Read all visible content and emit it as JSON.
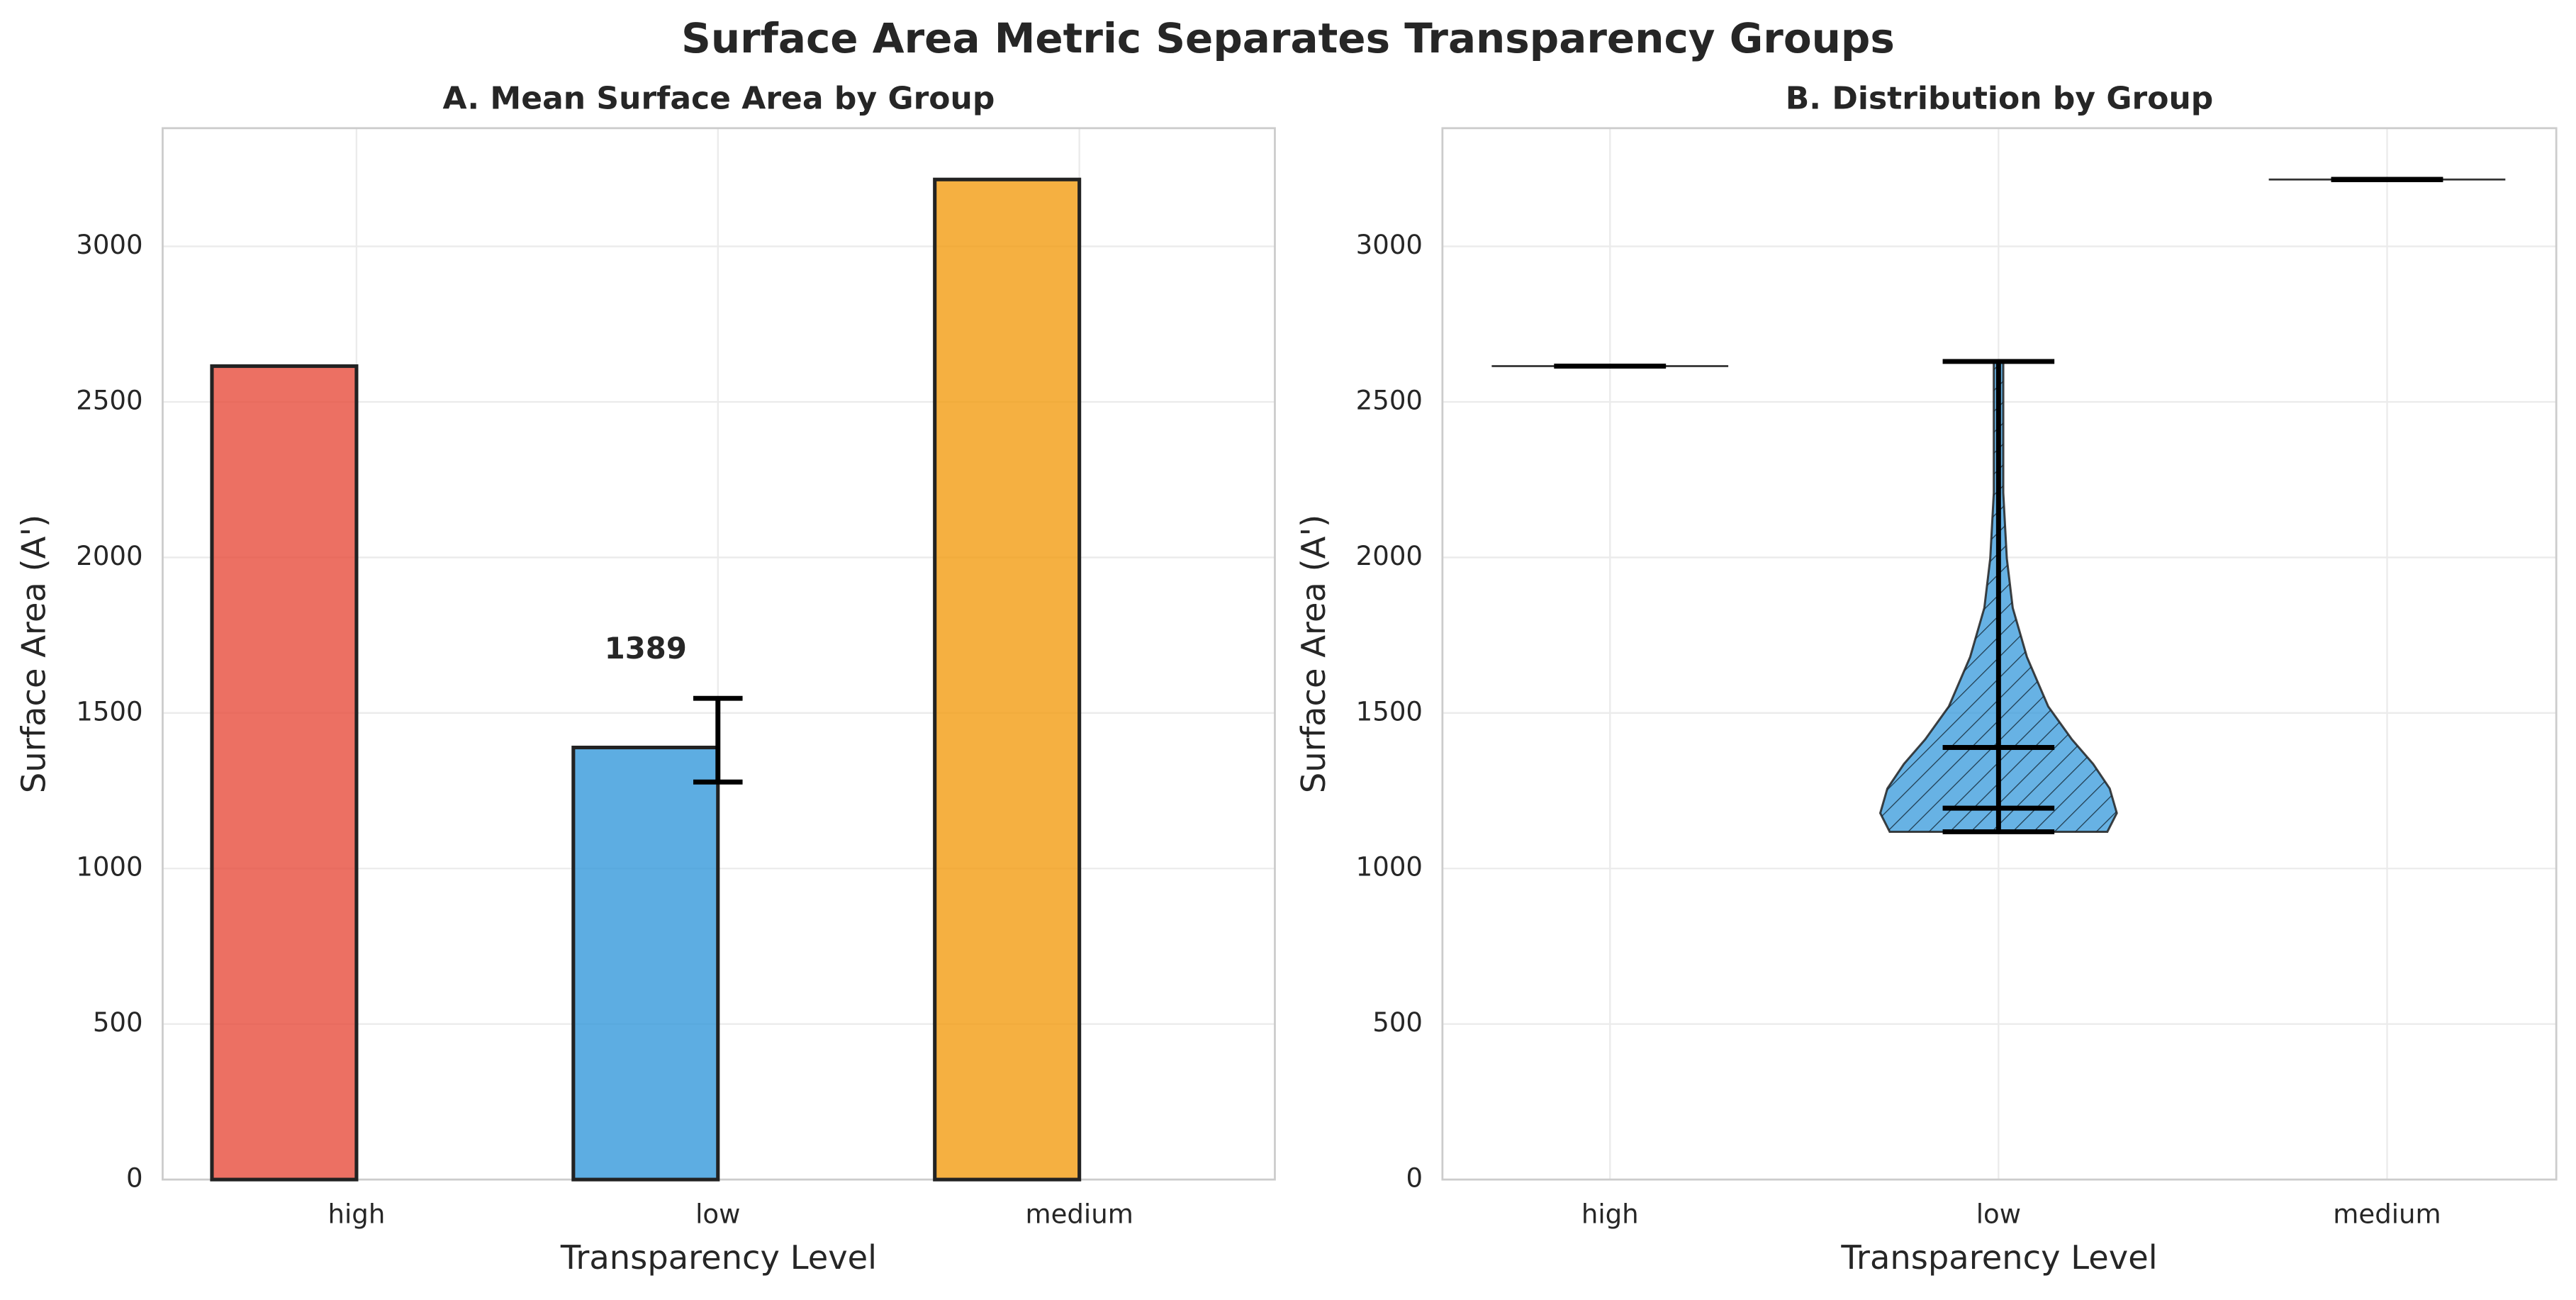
{
  "title": "Surface Area Metric Separates Transparency Groups",
  "chart_data": [
    {
      "type": "bar",
      "title": "A. Mean Surface Area by Group",
      "x_label": "Transparency Level",
      "y_label": "Surface Area (A')",
      "categories": [
        "high",
        "low",
        "medium"
      ],
      "values": [
        2615,
        1389,
        3215
      ],
      "colors": [
        "#e74c3c",
        "#3498db",
        "#f39c12"
      ],
      "error_minus": [
        null,
        111,
        null
      ],
      "error_plus": [
        null,
        158,
        null
      ],
      "value_labels": [
        null,
        "1389",
        null
      ],
      "ylim": [
        0,
        3380
      ],
      "yticks": [
        0,
        500,
        1000,
        1500,
        2000,
        2500,
        3000
      ],
      "grid": true
    },
    {
      "type": "violin",
      "title": "B. Distribution by Group",
      "x_label": "Transparency Level",
      "y_label": "Surface Area (A')",
      "categories": [
        "high",
        "low",
        "medium"
      ],
      "color": "#3498db",
      "min": [
        2615,
        1118,
        3215
      ],
      "max": [
        2615,
        2630,
        3215
      ],
      "mean": [
        2615,
        1389,
        3215
      ],
      "median": [
        2615,
        1194,
        3215
      ],
      "density": [
        null,
        {
          "y": [
            1118,
            1178,
            1257,
            1336,
            1415,
            1521,
            1680,
            1838,
            1997,
            2208,
            2472,
            2630
          ],
          "width": [
            0.92,
            1,
            0.94,
            0.8,
            0.62,
            0.42,
            0.24,
            0.12,
            0.07,
            0.04,
            0.04,
            0.04
          ]
        },
        null
      ],
      "ylim": [
        0,
        3380
      ],
      "yticks": [
        0,
        500,
        1000,
        1500,
        2000,
        2500,
        3000
      ],
      "grid": true
    }
  ]
}
